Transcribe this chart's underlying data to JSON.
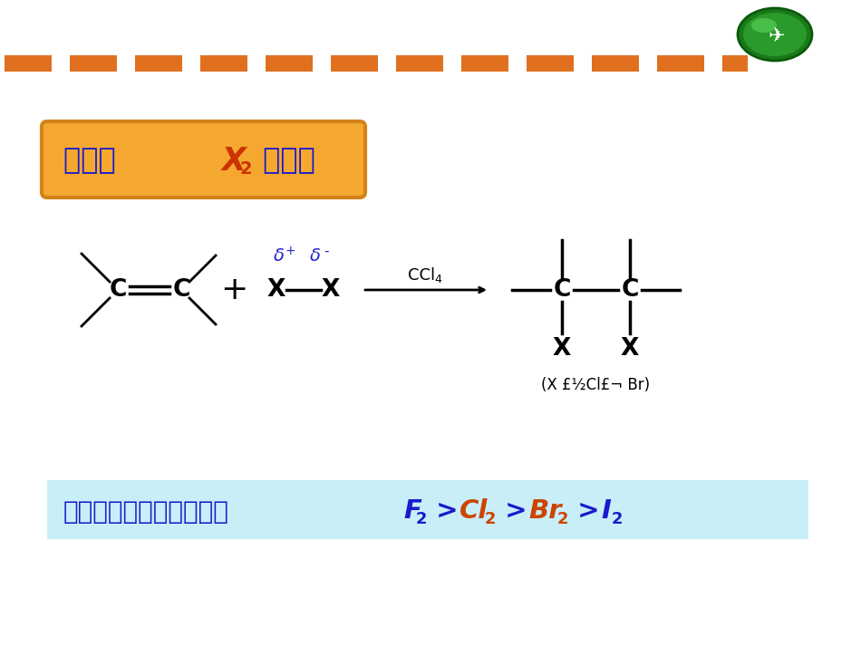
{
  "bg_color": "#ffffff",
  "dashed_color": "#e07020",
  "title_box_bg": "#f5a830",
  "title_box_border": "#d4821a",
  "title_text_color": "#1a1acc",
  "title_x2_color": "#cc3300",
  "black": "#000000",
  "blue": "#2222cc",
  "orange": "#cc4400",
  "bottom_box_bg": "#c8eef8",
  "note_text": "(X £½Cl£¬ Br)",
  "reactivity_label": "垄素与烯烂的反应活性：",
  "title_part1": "烯烂与 ",
  "title_part2": "X",
  "title_sub2": "2",
  "title_part3": " 的加成"
}
